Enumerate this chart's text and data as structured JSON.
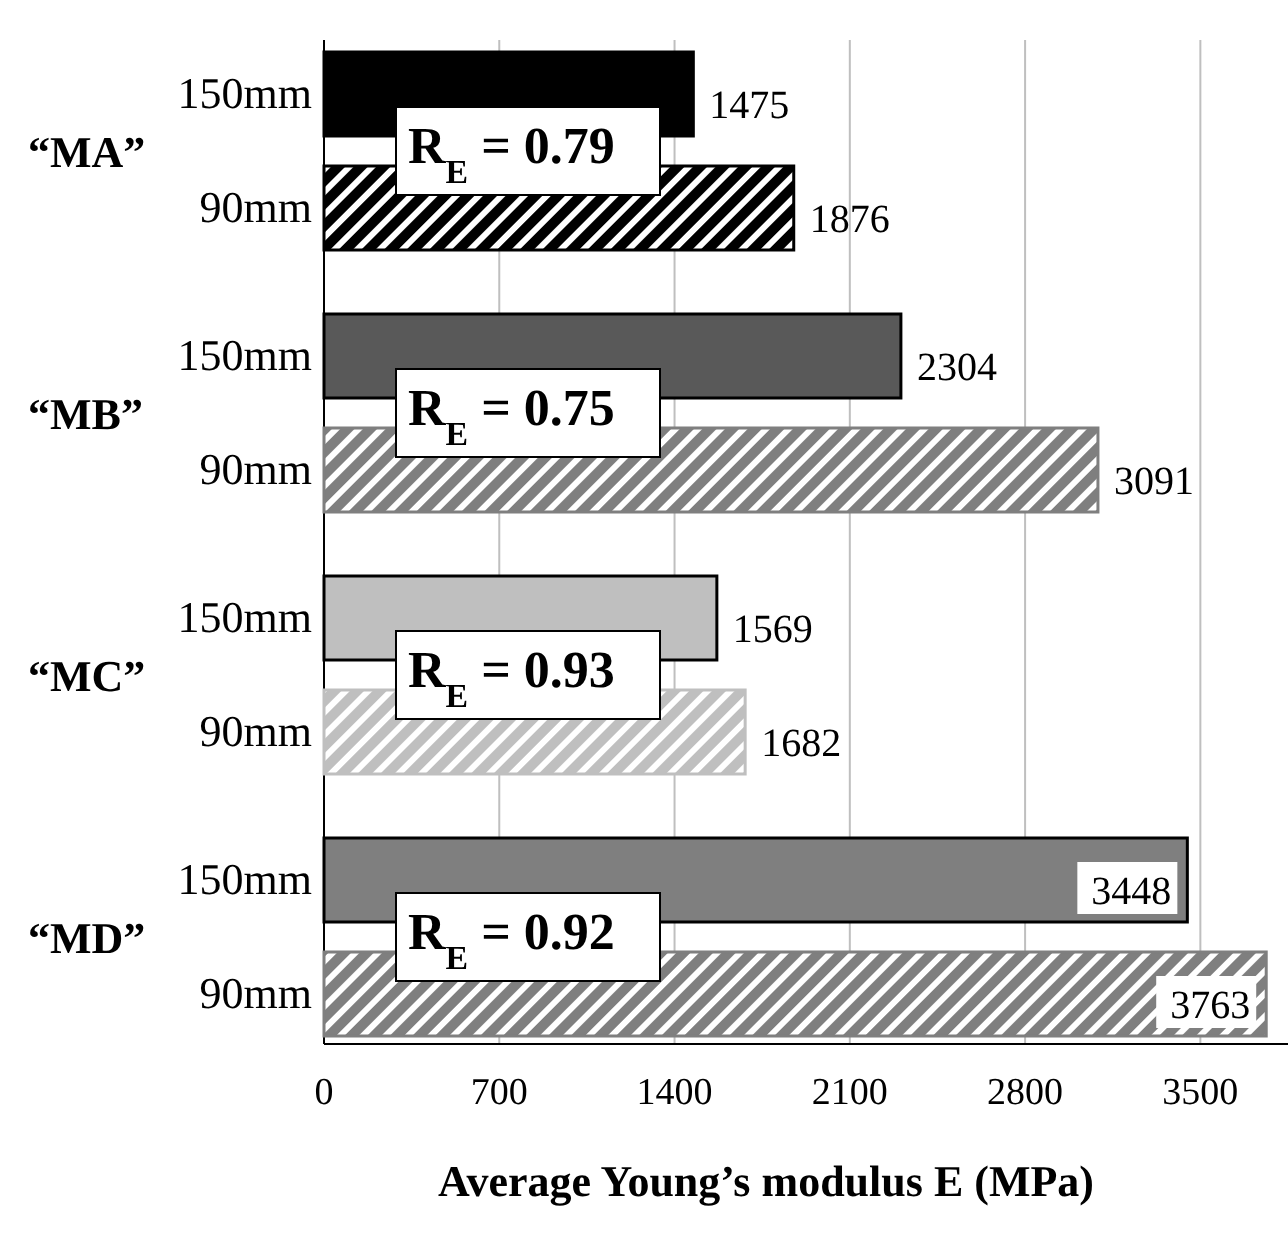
{
  "chart_data": {
    "type": "bar",
    "orientation": "horizontal",
    "xlabel": "Average Young’s modulus E (MPa)",
    "categories": [
      "150mm",
      "90mm",
      "150mm",
      "90mm",
      "150mm",
      "90mm",
      "150mm",
      "90mm"
    ],
    "values": [
      1475,
      1876,
      2304,
      3091,
      1569,
      1682,
      3448,
      3763
    ],
    "colors": [
      "#000000",
      "#000000",
      "#595959",
      "#7f7f7f",
      "#bfbfbf",
      "#bfbfbf",
      "#7f7f7f",
      "#7f7f7f"
    ],
    "data_labels": true,
    "xlim": [
      0,
      3850
    ],
    "xticks": [
      0,
      700,
      1400,
      2100,
      2800,
      3500
    ],
    "grid": "x",
    "annotations": [
      "“MA”",
      "“MB”",
      "“MC”",
      "“MD”",
      "R$_{E}$ = 0.79",
      "R$_{E}$ = 0.75",
      "R$_{E}$ = 0.93",
      "R$_{E}$ = 0.92"
    ]
  }
}
